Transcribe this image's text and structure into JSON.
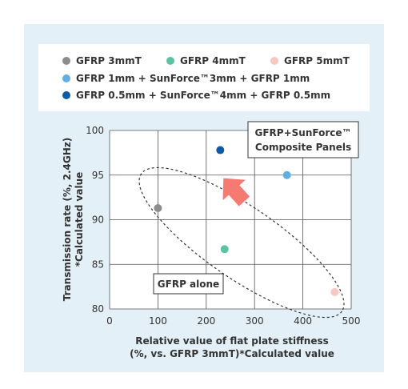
{
  "legend": {
    "items": [
      {
        "label": "GFRP 3mmT",
        "color": "#8c8c8c"
      },
      {
        "label": "GFRP 4mmT",
        "color": "#5cc2a0"
      },
      {
        "label": "GFRP 5mmT",
        "color": "#f7c7c2"
      },
      {
        "label": "GFRP 1mm + SunForce™3mm + GFRP 1mm",
        "color": "#62aee0"
      },
      {
        "label": "GFRP 0.5mm + SunForce™4mm + GFRP 0.5mm",
        "color": "#0e5aa6"
      }
    ]
  },
  "chart_data": {
    "type": "scatter",
    "xlabel": [
      "Relative value of flat plate stiffness",
      "(%, vs. GFRP 3mmT)*Calculated value"
    ],
    "ylabel": [
      "Transmission rate (%, 2.4GHz)",
      "*Calculated value"
    ],
    "xlim": [
      0,
      500
    ],
    "ylim": [
      80,
      100
    ],
    "xticks": [
      0,
      100,
      200,
      300,
      400,
      500
    ],
    "yticks": [
      80,
      85,
      90,
      95,
      100
    ],
    "grid": true,
    "series": [
      {
        "name": "GFRP 3mmT",
        "color": "#8c8c8c",
        "x": [
          100
        ],
        "y": [
          91.3
        ]
      },
      {
        "name": "GFRP 4mmT",
        "color": "#5cc2a0",
        "x": [
          238
        ],
        "y": [
          86.7
        ]
      },
      {
        "name": "GFRP 5mmT",
        "color": "#f7c7c2",
        "x": [
          466
        ],
        "y": [
          81.9
        ]
      },
      {
        "name": "GFRP 1mm + SunForce™3mm + GFRP 1mm",
        "color": "#62aee0",
        "x": [
          367
        ],
        "y": [
          95.0
        ]
      },
      {
        "name": "GFRP 0.5mm + SunForce™4mm + GFRP 0.5mm",
        "color": "#0e5aa6",
        "x": [
          229
        ],
        "y": [
          97.8
        ]
      }
    ],
    "annotations": {
      "composite": [
        "GFRP+SunForce™",
        "Composite Panels"
      ],
      "alone": "GFRP alone",
      "arrow_color": "#f47a72"
    }
  }
}
